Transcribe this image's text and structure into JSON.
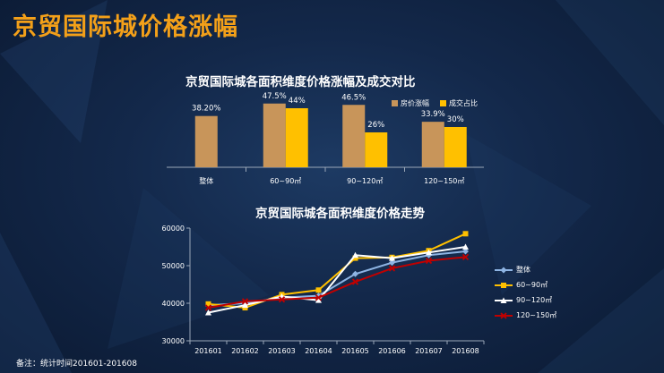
{
  "page_title": "京贸国际城价格涨幅",
  "footnote": "备注：统计时间201601-201608",
  "colors": {
    "accent": "#f3a019",
    "bar_price": "#c8955a",
    "bar_share": "#ffc000",
    "line_overall": "#8eb4e3",
    "line_60_90": "#ffc000",
    "line_90_120": "#ffffff",
    "line_120_150": "#c00000"
  },
  "chart_data": [
    {
      "type": "bar",
      "title": "京贸国际城各面积维度价格涨幅及成交对比",
      "categories": [
        "整体",
        "60~90㎡",
        "90~120㎡",
        "120~150㎡"
      ],
      "series": [
        {
          "name": "房价涨幅",
          "values": [
            38.2,
            47.5,
            46.5,
            33.9
          ],
          "labels": [
            "38.20%",
            "47.5%",
            "46.5%",
            "33.9%"
          ]
        },
        {
          "name": "成交占比",
          "values": [
            null,
            44,
            26,
            30
          ],
          "labels": [
            "",
            "44%",
            "26%",
            "30%"
          ]
        }
      ],
      "ylim": [
        0,
        50
      ],
      "grid": false,
      "legend": "top-right"
    },
    {
      "type": "line",
      "title": "京贸国际城各面积维度价格走势",
      "x": [
        "201601",
        "201602",
        "201603",
        "201604",
        "201605",
        "201606",
        "201607",
        "201608"
      ],
      "yticks": [
        "30000",
        "40000",
        "50000",
        "60000"
      ],
      "ylim": [
        30000,
        60000
      ],
      "series": [
        {
          "name": "整体",
          "marker": "diamond",
          "values": [
            39500,
            40000,
            41500,
            42000,
            47800,
            50800,
            52800,
            53800
          ]
        },
        {
          "name": "60~90㎡",
          "marker": "square",
          "values": [
            39800,
            38800,
            42300,
            43500,
            52000,
            52200,
            54000,
            58500
          ]
        },
        {
          "name": "90~120㎡",
          "marker": "triangle",
          "values": [
            37500,
            39500,
            41800,
            40800,
            52800,
            52000,
            53500,
            55000
          ]
        },
        {
          "name": "120~150㎡",
          "marker": "x",
          "values": [
            38800,
            40500,
            41000,
            41500,
            45700,
            49300,
            51300,
            52300
          ]
        }
      ],
      "grid": false,
      "legend": "right"
    }
  ]
}
